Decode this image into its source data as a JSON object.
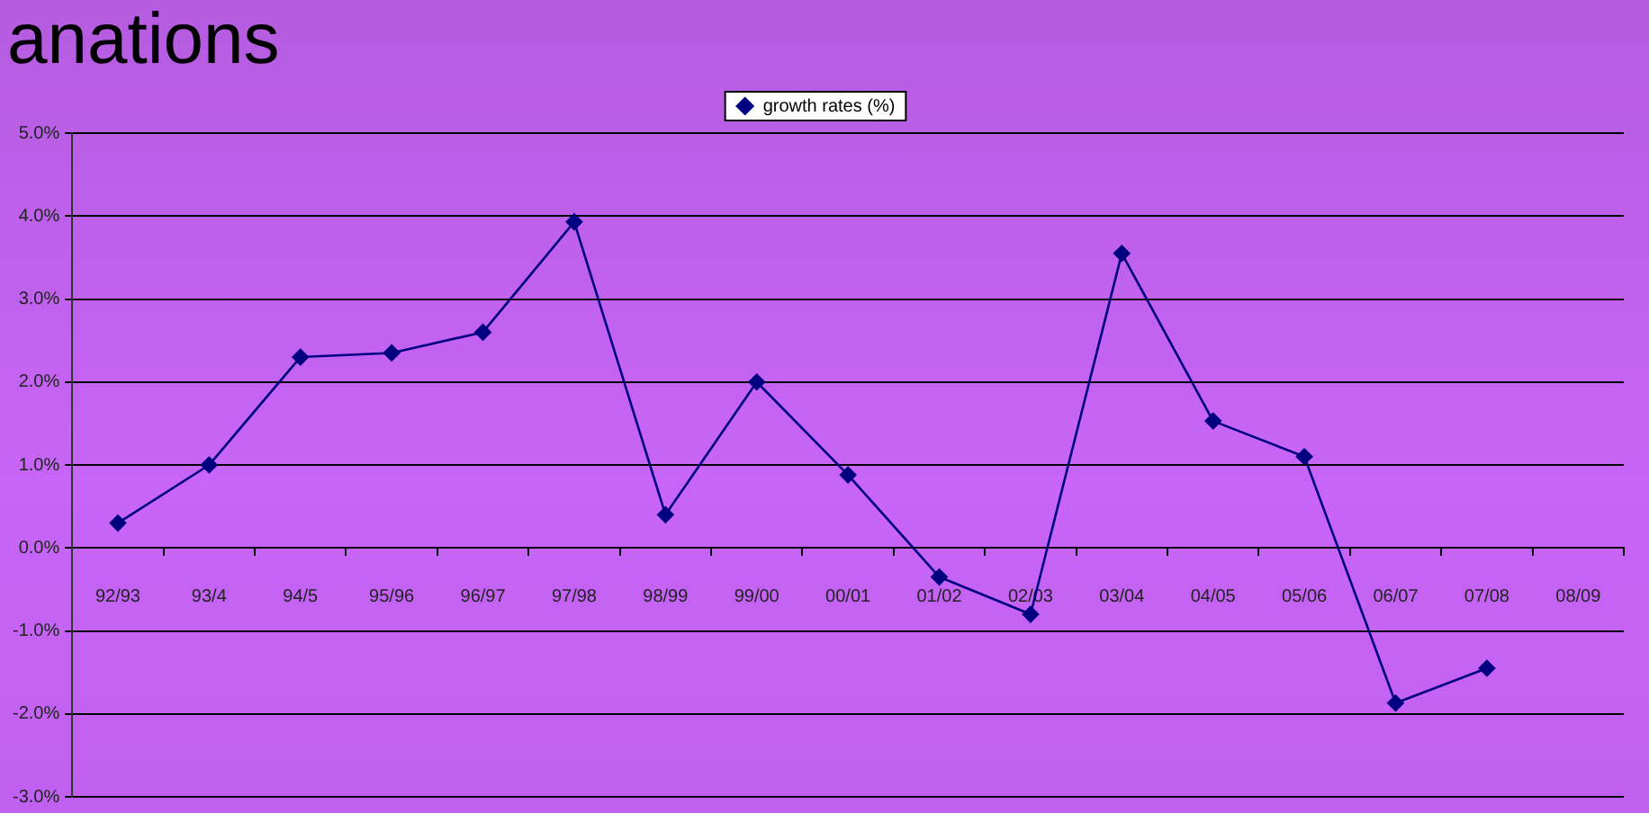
{
  "chart_data": {
    "type": "line",
    "title": "anations",
    "categories": [
      "92/93",
      "93/4",
      "94/5",
      "95/96",
      "96/97",
      "97/98",
      "98/99",
      "99/00",
      "00/01",
      "01/02",
      "02/03",
      "03/04",
      "04/05",
      "05/06",
      "06/07",
      "07/08",
      "08/09"
    ],
    "series": [
      {
        "name": "growth rates (%)",
        "color": "#000080",
        "values": [
          0.3,
          1.0,
          2.3,
          2.35,
          2.6,
          3.93,
          0.4,
          2.0,
          0.88,
          -0.35,
          -0.8,
          3.55,
          1.53,
          1.1,
          -1.87,
          -1.45,
          null
        ]
      }
    ],
    "ylim": [
      -3,
      5
    ],
    "yticks": [
      {
        "value": -3,
        "label": "-3.0%"
      },
      {
        "value": -2,
        "label": "-2.0%"
      },
      {
        "value": -1,
        "label": "-1.0%"
      },
      {
        "value": 0,
        "label": "0.0%"
      },
      {
        "value": 1,
        "label": "1.0%"
      },
      {
        "value": 2,
        "label": "2.0%"
      },
      {
        "value": 3,
        "label": "3.0%"
      },
      {
        "value": 4,
        "label": "4.0%"
      },
      {
        "value": 5,
        "label": "5.0%"
      }
    ],
    "grid": "y",
    "legend": "top",
    "marker": "diamond",
    "line_style": "solid"
  }
}
